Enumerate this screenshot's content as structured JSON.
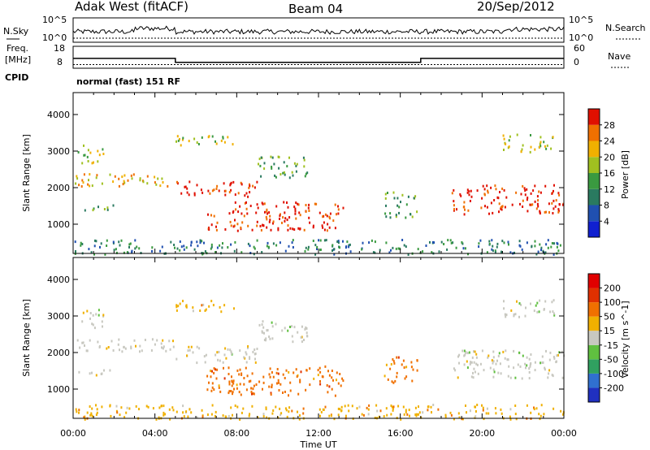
{
  "header": {
    "radar": "Adak West (fitACF)",
    "beam": "Beam 04",
    "date": "20/Sep/2012"
  },
  "noise_panel": {
    "left_label": "N.Sky",
    "left_ticks": [
      "10^5",
      "10^0"
    ],
    "right_label": "N.Search",
    "right_ticks": [
      "10^5",
      "10^0"
    ]
  },
  "freq_panel": {
    "left_label_line1": "Freq.",
    "left_label_line2": "[MHz]",
    "left_ticks": [
      "18",
      "8"
    ],
    "right_label": "Nave",
    "right_ticks": [
      "60",
      "0"
    ],
    "cpid_label": "CPID",
    "cpid_text": "normal (fast) 151 RF",
    "freq_segments": [
      {
        "t_start": 0.0,
        "t_end": 5.0,
        "mhz": 12.5
      },
      {
        "t_start": 5.0,
        "t_end": 17.0,
        "mhz": 10.7
      },
      {
        "t_start": 17.0,
        "t_end": 24.0,
        "mhz": 12.5
      }
    ],
    "nave_value": 10
  },
  "chart_data": [
    {
      "type": "heatmap",
      "title": "Power",
      "ylabel": "Slant Range [km]",
      "yticks": [
        "1000",
        "2000",
        "3000",
        "4000"
      ],
      "ylim": [
        200,
        4600
      ],
      "xlim_hours": [
        0,
        24
      ],
      "colorbar_label": "Power [dB]",
      "colorbar_ticks": [
        "4",
        "8",
        "12",
        "16",
        "20",
        "24",
        "28"
      ],
      "colorbar_colors": [
        "#1020d0",
        "#2050b0",
        "#2a7a60",
        "#3a9a40",
        "#a0c020",
        "#f0b000",
        "#f07000",
        "#e01000"
      ],
      "scatter_regions": [
        {
          "t0": 0.0,
          "t1": 5.0,
          "r0": 2050,
          "r1": 2400,
          "level": 5
        },
        {
          "t0": 0.0,
          "t1": 2.0,
          "r0": 1400,
          "r1": 1550,
          "level": 3
        },
        {
          "t0": 0.2,
          "t1": 1.5,
          "r0": 2700,
          "r1": 3200,
          "level": 4
        },
        {
          "t0": 5.0,
          "t1": 9.0,
          "r0": 1750,
          "r1": 2200,
          "level": 7
        },
        {
          "t0": 5.0,
          "t1": 8.0,
          "r0": 3150,
          "r1": 3450,
          "level": 4
        },
        {
          "t0": 6.5,
          "t1": 13.2,
          "r0": 850,
          "r1": 1650,
          "level": 7
        },
        {
          "t0": 9.0,
          "t1": 11.5,
          "r0": 2300,
          "r1": 2900,
          "level": 3
        },
        {
          "t0": 15.2,
          "t1": 16.8,
          "r0": 1200,
          "r1": 1900,
          "level": 3
        },
        {
          "t0": 18.5,
          "t1": 24.0,
          "r0": 1300,
          "r1": 2100,
          "level": 7
        },
        {
          "t0": 21.0,
          "t1": 23.5,
          "r0": 3000,
          "r1": 3500,
          "level": 4
        },
        {
          "t0": 0.0,
          "t1": 24.0,
          "r0": 200,
          "r1": 600,
          "level": 2
        }
      ]
    },
    {
      "type": "heatmap",
      "title": "Velocity",
      "ylabel": "Slant Range [km]",
      "yticks": [
        "1000",
        "2000",
        "3000",
        "4000"
      ],
      "ylim": [
        200,
        4600
      ],
      "xlim_hours": [
        0,
        24
      ],
      "xticks": [
        "00:00",
        "04:00",
        "08:00",
        "12:00",
        "16:00",
        "20:00",
        "00:00"
      ],
      "xlabel": "Time UT",
      "colorbar_label": "Velocity [m s^-1]",
      "colorbar_ticks": [
        "200",
        "100",
        "50",
        "15",
        "-15",
        "-50",
        "-100",
        "-200"
      ],
      "colorbar_colors": [
        "#2030c0",
        "#3070d0",
        "#30a060",
        "#60c040",
        "#c8c8c0",
        "#f0b000",
        "#f07000",
        "#e03000",
        "#e00000"
      ],
      "scatter_regions": [
        {
          "t0": 0.0,
          "t1": 5.0,
          "r0": 2050,
          "r1": 2400,
          "color_index": 4
        },
        {
          "t0": 0.0,
          "t1": 2.0,
          "r0": 1400,
          "r1": 1550,
          "color_index": 4
        },
        {
          "t0": 0.2,
          "t1": 1.5,
          "r0": 2700,
          "r1": 3200,
          "color_index": 4
        },
        {
          "t0": 5.0,
          "t1": 9.0,
          "r0": 1750,
          "r1": 2200,
          "color_index": 4
        },
        {
          "t0": 5.0,
          "t1": 8.0,
          "r0": 3150,
          "r1": 3450,
          "color_index": 5
        },
        {
          "t0": 6.5,
          "t1": 13.2,
          "r0": 850,
          "r1": 1650,
          "color_index": 6
        },
        {
          "t0": 9.0,
          "t1": 11.5,
          "r0": 2300,
          "r1": 2900,
          "color_index": 4
        },
        {
          "t0": 15.2,
          "t1": 16.8,
          "r0": 1200,
          "r1": 1900,
          "color_index": 6
        },
        {
          "t0": 18.5,
          "t1": 24.0,
          "r0": 1300,
          "r1": 2100,
          "color_index": 4
        },
        {
          "t0": 21.0,
          "t1": 23.5,
          "r0": 3000,
          "r1": 3500,
          "color_index": 4
        },
        {
          "t0": 0.0,
          "t1": 24.0,
          "r0": 200,
          "r1": 600,
          "color_index": 5
        }
      ]
    }
  ]
}
